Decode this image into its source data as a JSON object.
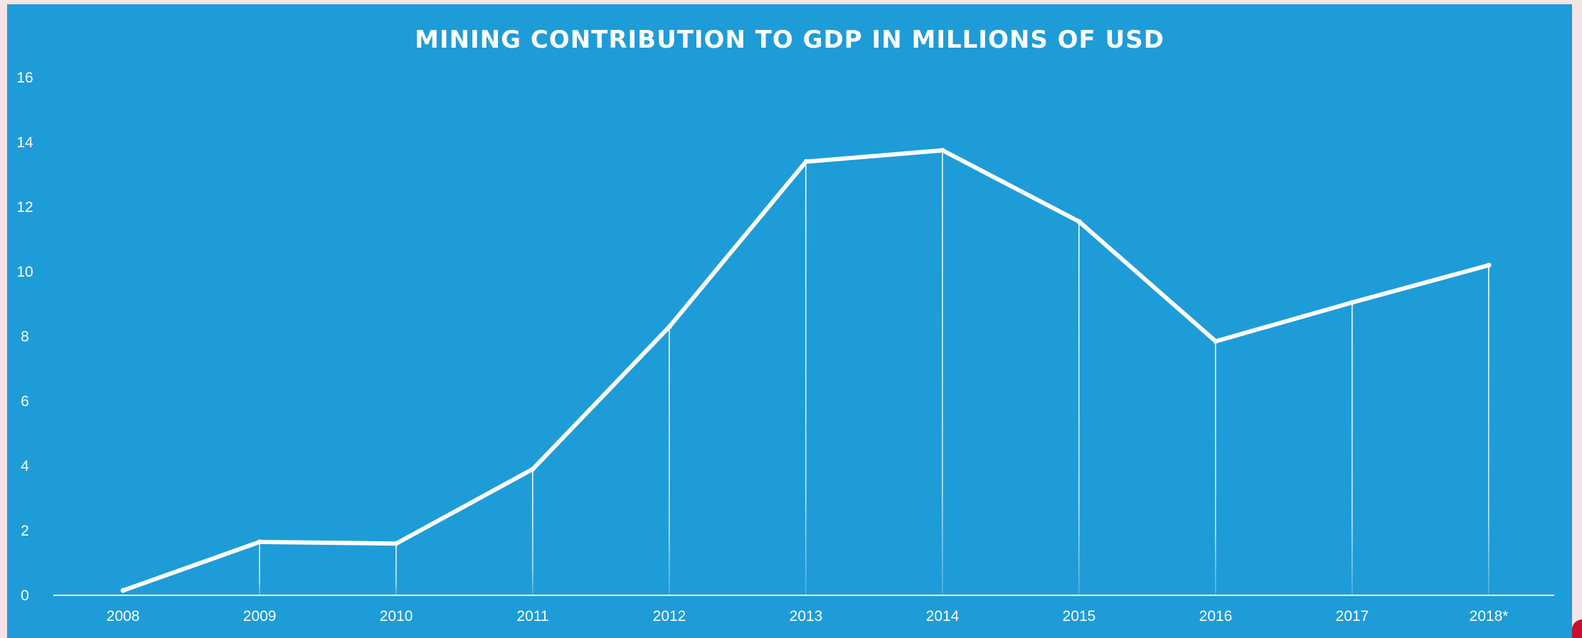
{
  "chart_data": {
    "type": "line",
    "title": "MINING CONTRIBUTION TO GDP IN MILLIONS OF USD",
    "xlabel": "",
    "ylabel": "",
    "categories": [
      "2008",
      "2009",
      "2010",
      "2011",
      "2012",
      "2013",
      "2014",
      "2015",
      "2016",
      "2017",
      "2018*"
    ],
    "series": [
      {
        "values": [
          0.15,
          1.65,
          1.6,
          3.9,
          8.3,
          13.4,
          13.75,
          11.55,
          7.85,
          9.05,
          10.2
        ]
      }
    ],
    "ylim": [
      0,
      16
    ],
    "yticks": [
      0,
      2,
      4,
      6,
      8,
      10,
      12,
      14,
      16
    ],
    "grid": false,
    "legend": "none",
    "background_color": "#1e9cd7",
    "line_color": "#ffffff",
    "drop_lines": true
  }
}
